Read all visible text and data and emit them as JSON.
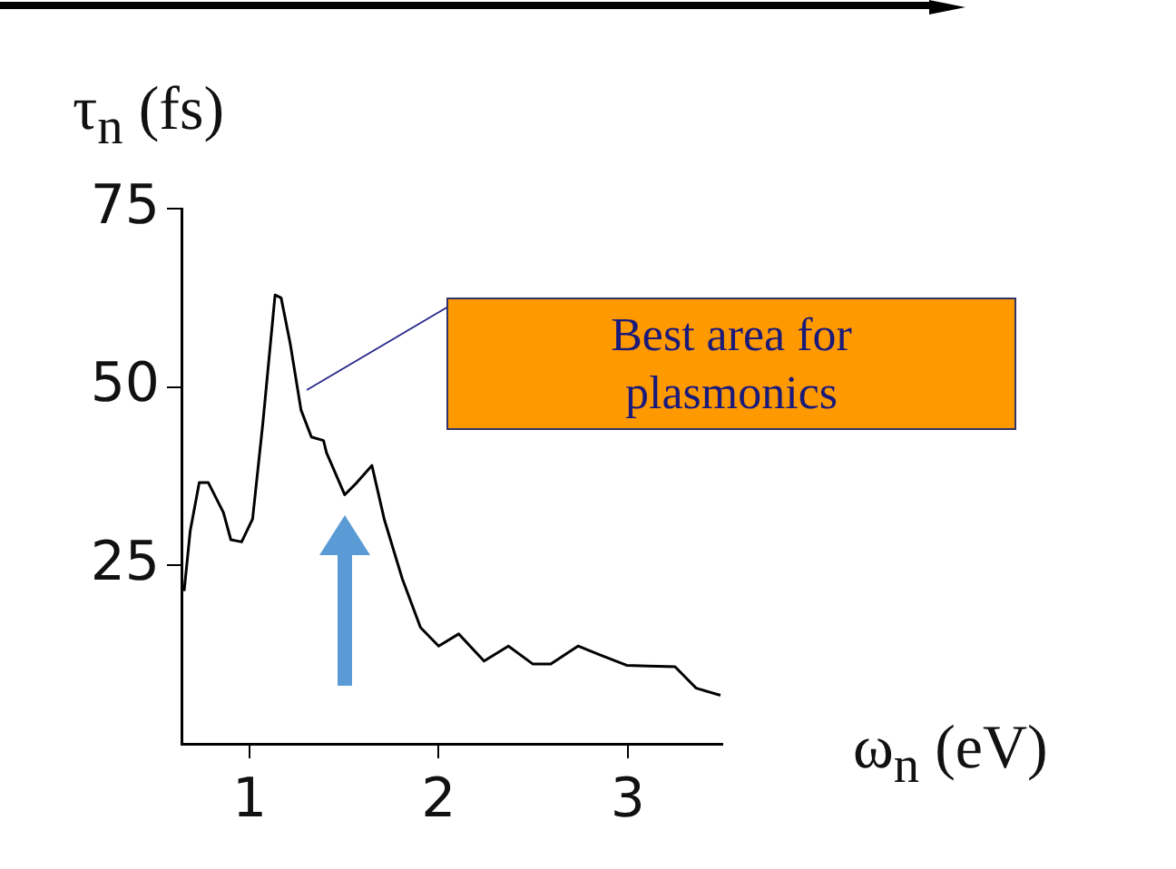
{
  "chart_data": {
    "type": "line",
    "xlabel": "ω$_{n}$ (eV)",
    "ylabel": "τ$_{n}$ (fs)",
    "x": [
      0.654,
      0.686,
      0.734,
      0.782,
      0.862,
      0.901,
      0.958,
      1.016,
      1.071,
      1.135,
      1.167,
      1.215,
      1.272,
      1.327,
      1.391,
      1.407,
      1.503,
      1.567,
      1.647,
      1.712,
      1.808,
      1.904,
      2.0,
      2.106,
      2.24,
      2.369,
      2.497,
      2.593,
      2.737,
      2.849,
      2.994,
      3.106,
      3.25,
      3.362,
      3.49
    ],
    "series": [
      {
        "color": "#000000",
        "values": [
          21.4,
          29.8,
          36.6,
          36.6,
          32.4,
          28.6,
          28.3,
          31.5,
          45.1,
          62.9,
          62.5,
          56.1,
          46.8,
          43.0,
          42.5,
          40.8,
          34.9,
          36.6,
          39.0,
          31.5,
          23.1,
          16.3,
          13.7,
          15.4,
          11.6,
          13.7,
          11.2,
          11.2,
          13.7,
          12.5,
          11.0,
          10.9,
          10.8,
          7.8,
          6.8
        ]
      }
    ],
    "xlim": [
      0.64,
      3.5
    ],
    "xticks": [
      1,
      2,
      3
    ],
    "ylim": [
      0,
      75
    ],
    "yticks": [
      25,
      50,
      75
    ],
    "grid": false,
    "legend": false,
    "marker": "none",
    "line_style": "solid",
    "annotations": [
      "Best area for plasmonics"
    ]
  }
}
